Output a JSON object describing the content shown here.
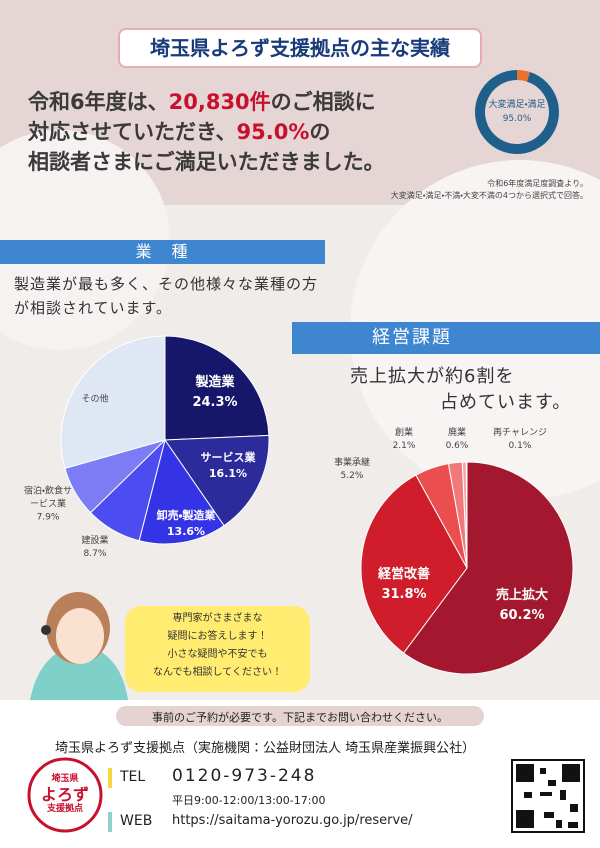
{
  "header": {
    "title": "埼玉県よろず支援拠点の主な実績"
  },
  "summary": {
    "line1": [
      "令和6年度は、",
      "20,830件",
      "のご相談に"
    ],
    "line2": [
      "対応させていただき、",
      "95.0%",
      "の"
    ],
    "line3": "相談者さまにご満足いただきました。",
    "notes": [
      "令和6年度満足度調査より。",
      "大変満足・満足・不満・大変不満の4つから選択式で回答。"
    ]
  },
  "sections": [
    {
      "heading": "業　種",
      "text": "製造業が最も多く、その他様々な業種の方が相談されています。"
    },
    {
      "heading": "経営課題",
      "text": [
        "売上拡大が約6割を",
        "占めています。"
      ]
    }
  ],
  "bubble": [
    "専門家がさまざまな",
    "疑問にお答えします！",
    "小さな疑問や不安でも",
    "なんでも相談してください！"
  ],
  "footer": {
    "notice": "事前のご予約が必要です。下記までお問い合わせください。",
    "org": "埼玉県よろず支援拠点（実施機関：公益財団法人 埼玉県産業振興公社）",
    "tel_label": "TEL",
    "tel": "0120-973-248",
    "hours": "平日9:00-12:00/13:00-17:00",
    "web_label": "WEB",
    "web": "https://saitama-yorozu.go.jp/reserve/",
    "logo": [
      "埼玉県",
      "よろず",
      "支援拠点"
    ]
  },
  "chart_data": [
    {
      "type": "donut",
      "categories": [
        "大変満足・満足",
        null
      ],
      "values": [
        95.0,
        5.0
      ],
      "value_labels": [
        "95.0%",
        null
      ],
      "colors": [
        "#1f5f8b",
        "#e8732a"
      ]
    },
    {
      "type": "pie",
      "categories": [
        "製造業",
        "サービス業",
        "卸売・製造業",
        "建設業",
        "宿泊・飲食サービス業",
        "その他"
      ],
      "values": [
        24.3,
        16.1,
        13.6,
        8.7,
        7.9,
        29.4
      ],
      "value_labels": [
        "24.3%",
        "16.1%",
        "13.6%",
        "8.7%",
        "7.9%",
        null
      ],
      "colors": [
        "#16166a",
        "#2b2b9c",
        "#3434e6",
        "#4c4cf0",
        "#7c7cf4",
        "#dfe7f5"
      ]
    },
    {
      "type": "pie",
      "categories": [
        "売上拡大",
        "経営改善",
        "事業承継",
        "創業",
        "廃業",
        "再チャレンジ"
      ],
      "values": [
        60.2,
        31.8,
        5.2,
        2.1,
        0.6,
        0.1
      ],
      "value_labels": [
        "60.2%",
        "31.8%",
        "5.2%",
        "2.1%",
        "0.6%",
        "0.1%"
      ],
      "colors": [
        "#a3182f",
        "#cf1d2b",
        "#ea4e4e",
        "#f07a7a",
        "#f4a5a5",
        "#f6cccc"
      ]
    }
  ]
}
